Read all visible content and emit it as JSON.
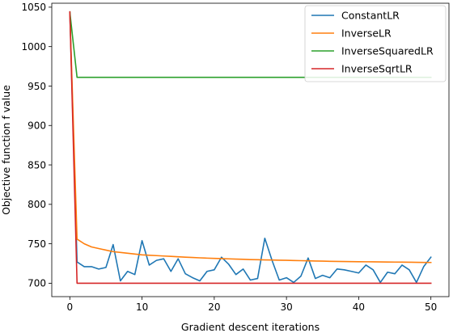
{
  "chart_data": {
    "type": "line",
    "title": "",
    "xlabel": "Gradient descent iterations",
    "ylabel": "Objective function f value",
    "xlim": [
      -2.5,
      52.5
    ],
    "ylim": [
      683,
      1055
    ],
    "xticks": [
      0,
      10,
      20,
      30,
      40,
      50
    ],
    "yticks": [
      700,
      750,
      800,
      850,
      900,
      950,
      1000,
      1050
    ],
    "grid": false,
    "legend_position": "top-right",
    "x": [
      0,
      1,
      2,
      3,
      4,
      5,
      6,
      7,
      8,
      9,
      10,
      11,
      12,
      13,
      14,
      15,
      16,
      17,
      18,
      19,
      20,
      21,
      22,
      23,
      24,
      25,
      26,
      27,
      28,
      29,
      30,
      31,
      32,
      33,
      34,
      35,
      36,
      37,
      38,
      39,
      40,
      41,
      42,
      43,
      44,
      45,
      46,
      47,
      48,
      49,
      50
    ],
    "series": [
      {
        "name": "ConstantLR",
        "color": "#1f77b4",
        "values": [
          1044,
          727,
          721,
          721,
          718,
          720,
          749,
          703,
          715,
          711,
          754,
          723,
          729,
          731,
          715,
          731,
          712,
          707,
          703,
          715,
          717,
          733,
          724,
          711,
          718,
          704,
          706,
          757,
          729,
          704,
          707,
          701,
          709,
          732,
          706,
          710,
          707,
          718,
          717,
          715,
          713,
          723,
          717,
          701,
          714,
          712,
          723,
          717,
          701,
          721,
          733
        ]
      },
      {
        "name": "InverseLR",
        "color": "#ff7f0e",
        "values": [
          1044,
          756,
          750,
          746,
          744,
          742,
          740,
          739,
          738,
          737,
          736,
          735.5,
          735,
          734.5,
          734,
          733.5,
          733,
          732.6,
          732.2,
          731.8,
          731.5,
          731.2,
          730.9,
          730.6,
          730.3,
          730,
          729.8,
          729.6,
          729.4,
          729.2,
          729,
          728.8,
          728.6,
          728.4,
          728.2,
          728,
          727.8,
          727.6,
          727.5,
          727.4,
          727.3,
          727.2,
          727.1,
          727,
          726.9,
          726.8,
          726.7,
          726.6,
          726.5,
          726.4,
          726.3
        ]
      },
      {
        "name": "InverseSquaredLR",
        "color": "#2ca02c",
        "values": [
          1044,
          961,
          961,
          961,
          961,
          961,
          961,
          961,
          961,
          961,
          961,
          961,
          961,
          961,
          961,
          961,
          961,
          961,
          961,
          961,
          961,
          961,
          961,
          961,
          961,
          961,
          961,
          961,
          961,
          961,
          961,
          961,
          961,
          961,
          961,
          961,
          961,
          961,
          961,
          961,
          961,
          961,
          961,
          961,
          961,
          961,
          961,
          961,
          961,
          961,
          961
        ]
      },
      {
        "name": "InverseSqrtLR",
        "color": "#d62728",
        "values": [
          1044,
          700,
          700,
          700,
          700,
          700,
          700,
          700,
          700,
          700,
          700,
          700,
          700,
          700,
          700,
          700,
          700,
          700,
          700,
          700,
          700,
          700,
          700,
          700,
          700,
          700,
          700,
          700,
          700,
          700,
          700,
          700,
          700,
          700,
          700,
          700,
          700,
          700,
          700,
          700,
          700,
          700,
          700,
          700,
          700,
          700,
          700,
          700,
          700,
          700,
          700
        ]
      }
    ]
  }
}
